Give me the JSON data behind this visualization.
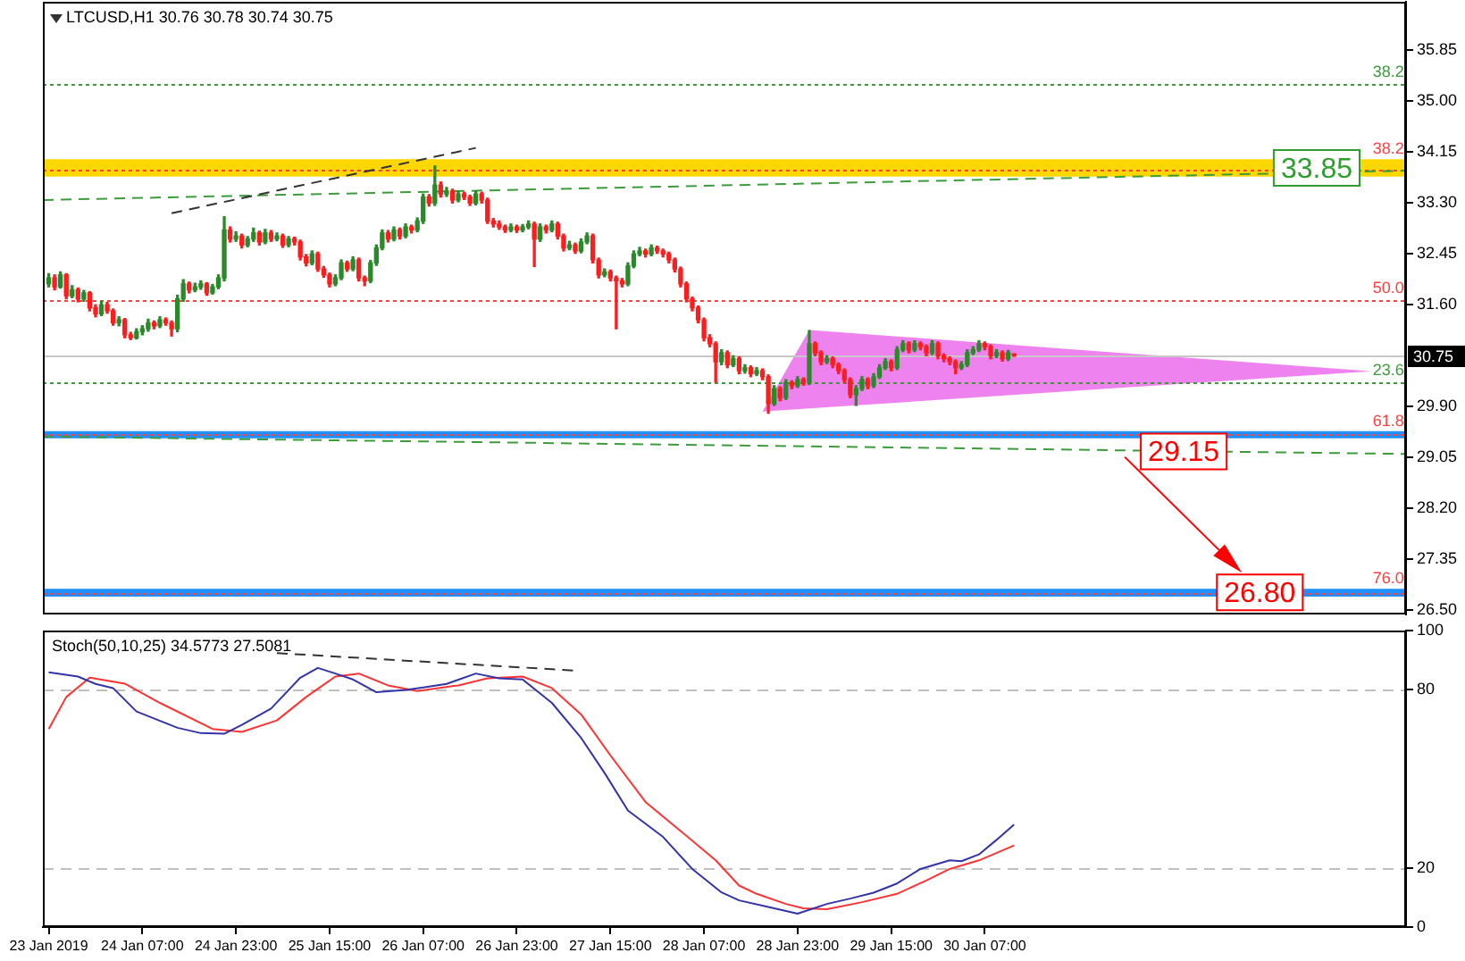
{
  "chart_data": [
    {
      "type": "candlestick",
      "title": "LTCUSD,H1 30.76 30.78 30.74 30.75",
      "tick_labels": "y",
      "xlim": [
        "2019-01-23T14:00",
        "2019-02-02T07:00"
      ],
      "ylim": [
        26.43,
        36.66
      ],
      "yticks": [
        {
          "value": 26.5,
          "label": "26.50"
        },
        27.35,
        {
          "value": 28.2,
          "label": "28.20"
        },
        29.05,
        {
          "value": 29.9,
          "label": "29.90"
        },
        {
          "value": 31.6,
          "label": "31.60"
        },
        32.45,
        {
          "value": 33.3,
          "label": "33.30"
        },
        34.15,
        {
          "value": 35.0,
          "label": "35.00"
        },
        35.85
      ],
      "x": [
        "2019-01-23T15:00",
        "2019-01-23T16:00",
        "2019-01-23T17:00",
        "2019-01-23T18:00",
        "2019-01-23T19:00",
        "2019-01-23T20:00",
        "2019-01-23T21:00",
        "2019-01-23T22:00",
        "2019-01-23T23:00",
        "2019-01-24T00:00",
        "2019-01-24T01:00",
        "2019-01-24T02:00",
        "2019-01-24T03:00",
        "2019-01-24T04:00",
        "2019-01-24T05:00",
        "2019-01-24T06:00",
        "2019-01-24T07:00",
        "2019-01-24T08:00",
        "2019-01-24T09:00",
        "2019-01-24T10:00",
        "2019-01-24T11:00",
        "2019-01-24T12:00",
        "2019-01-24T13:00",
        "2019-01-24T14:00",
        "2019-01-24T15:00",
        "2019-01-24T16:00",
        "2019-01-24T17:00",
        "2019-01-24T18:00",
        "2019-01-24T19:00",
        "2019-01-24T20:00",
        "2019-01-24T21:00",
        "2019-01-24T22:00",
        "2019-01-24T23:00",
        "2019-01-25T00:00",
        "2019-01-25T01:00",
        "2019-01-25T02:00",
        "2019-01-25T03:00",
        "2019-01-25T04:00",
        "2019-01-25T05:00",
        "2019-01-25T06:00",
        "2019-01-25T07:00",
        "2019-01-25T08:00",
        "2019-01-25T09:00",
        "2019-01-25T10:00",
        "2019-01-25T11:00",
        "2019-01-25T12:00",
        "2019-01-25T13:00",
        "2019-01-25T14:00",
        "2019-01-25T15:00",
        "2019-01-25T16:00",
        "2019-01-25T17:00",
        "2019-01-25T18:00",
        "2019-01-25T19:00",
        "2019-01-25T20:00",
        "2019-01-25T21:00",
        "2019-01-25T22:00",
        "2019-01-25T23:00",
        "2019-01-26T00:00",
        "2019-01-26T01:00",
        "2019-01-26T02:00",
        "2019-01-26T03:00",
        "2019-01-26T04:00",
        "2019-01-26T05:00",
        "2019-01-26T06:00",
        "2019-01-26T07:00",
        "2019-01-26T08:00",
        "2019-01-26T09:00",
        "2019-01-26T10:00",
        "2019-01-26T11:00",
        "2019-01-26T12:00",
        "2019-01-26T13:00",
        "2019-01-26T14:00",
        "2019-01-26T15:00",
        "2019-01-26T16:00",
        "2019-01-26T17:00",
        "2019-01-26T18:00",
        "2019-01-26T19:00",
        "2019-01-26T20:00",
        "2019-01-26T21:00",
        "2019-01-26T22:00",
        "2019-01-26T23:00",
        "2019-01-27T00:00",
        "2019-01-27T01:00",
        "2019-01-27T02:00",
        "2019-01-27T03:00",
        "2019-01-27T04:00",
        "2019-01-27T05:00",
        "2019-01-27T06:00",
        "2019-01-27T07:00",
        "2019-01-27T08:00",
        "2019-01-27T09:00",
        "2019-01-27T10:00",
        "2019-01-27T11:00",
        "2019-01-27T12:00",
        "2019-01-27T13:00",
        "2019-01-27T14:00",
        "2019-01-27T15:00",
        "2019-01-27T16:00",
        "2019-01-27T17:00",
        "2019-01-27T18:00",
        "2019-01-27T19:00",
        "2019-01-27T20:00",
        "2019-01-27T21:00",
        "2019-01-27T22:00",
        "2019-01-27T23:00",
        "2019-01-28T00:00",
        "2019-01-28T01:00",
        "2019-01-28T02:00",
        "2019-01-28T03:00",
        "2019-01-28T04:00",
        "2019-01-28T05:00",
        "2019-01-28T06:00",
        "2019-01-28T07:00",
        "2019-01-28T08:00",
        "2019-01-28T09:00",
        "2019-01-28T10:00",
        "2019-01-28T11:00",
        "2019-01-28T12:00",
        "2019-01-28T13:00",
        "2019-01-28T14:00",
        "2019-01-28T15:00",
        "2019-01-28T16:00",
        "2019-01-28T17:00",
        "2019-01-28T18:00",
        "2019-01-28T19:00",
        "2019-01-28T20:00",
        "2019-01-28T21:00",
        "2019-01-28T22:00",
        "2019-01-28T23:00",
        "2019-01-29T00:00",
        "2019-01-29T01:00",
        "2019-01-29T02:00",
        "2019-01-29T03:00",
        "2019-01-29T04:00",
        "2019-01-29T05:00",
        "2019-01-29T06:00",
        "2019-01-29T07:00",
        "2019-01-29T08:00",
        "2019-01-29T09:00",
        "2019-01-29T10:00",
        "2019-01-29T11:00",
        "2019-01-29T12:00",
        "2019-01-29T13:00",
        "2019-01-29T14:00",
        "2019-01-29T15:00",
        "2019-01-29T16:00",
        "2019-01-29T17:00",
        "2019-01-29T18:00",
        "2019-01-29T19:00",
        "2019-01-29T20:00",
        "2019-01-29T21:00",
        "2019-01-29T22:00",
        "2019-01-29T23:00",
        "2019-01-30T00:00",
        "2019-01-30T01:00",
        "2019-01-30T02:00",
        "2019-01-30T03:00",
        "2019-01-30T04:00",
        "2019-01-30T05:00",
        "2019-01-30T06:00",
        "2019-01-30T07:00",
        "2019-01-30T08:00",
        "2019-01-30T09:00",
        "2019-01-30T10:00",
        "2019-01-30T11:00",
        "2019-01-30T12:00"
      ],
      "ohlc": [
        [
          31.95,
          32.12,
          31.9,
          32.05
        ],
        [
          32.05,
          32.1,
          31.85,
          31.9
        ],
        [
          31.9,
          32.15,
          31.88,
          32.1
        ],
        [
          32.1,
          32.12,
          31.7,
          31.75
        ],
        [
          31.75,
          31.92,
          31.72,
          31.85
        ],
        [
          31.85,
          31.88,
          31.65,
          31.7
        ],
        [
          31.7,
          31.84,
          31.66,
          31.8
        ],
        [
          31.8,
          31.82,
          31.5,
          31.55
        ],
        [
          31.55,
          31.6,
          31.4,
          31.45
        ],
        [
          31.45,
          31.66,
          31.42,
          31.6
        ],
        [
          31.6,
          31.64,
          31.46,
          31.5
        ],
        [
          31.5,
          31.53,
          31.26,
          31.3
        ],
        [
          31.3,
          31.4,
          31.25,
          31.35
        ],
        [
          31.35,
          31.37,
          31.05,
          31.1
        ],
        [
          31.1,
          31.14,
          31.02,
          31.05
        ],
        [
          31.05,
          31.2,
          31.03,
          31.15
        ],
        [
          31.15,
          31.25,
          31.1,
          31.2
        ],
        [
          31.2,
          31.36,
          31.16,
          31.3
        ],
        [
          31.3,
          31.33,
          31.2,
          31.25
        ],
        [
          31.25,
          31.4,
          31.22,
          31.35
        ],
        [
          31.35,
          31.38,
          31.26,
          31.3
        ],
        [
          31.3,
          31.33,
          31.08,
          31.2
        ],
        [
          31.2,
          31.76,
          31.15,
          31.7
        ],
        [
          31.7,
          32.02,
          31.66,
          31.95
        ],
        [
          31.95,
          31.98,
          31.8,
          31.85
        ],
        [
          31.85,
          31.96,
          31.82,
          31.9
        ],
        [
          31.9,
          32.0,
          31.86,
          31.95
        ],
        [
          31.95,
          31.97,
          31.76,
          31.8
        ],
        [
          31.8,
          31.94,
          31.78,
          31.9
        ],
        [
          31.9,
          32.1,
          31.87,
          32.05
        ],
        [
          32.05,
          33.07,
          32.0,
          32.85
        ],
        [
          32.85,
          32.9,
          32.65,
          32.7
        ],
        [
          32.7,
          32.82,
          32.66,
          32.75
        ],
        [
          32.75,
          32.78,
          32.55,
          32.6
        ],
        [
          32.6,
          32.74,
          32.57,
          32.7
        ],
        [
          32.7,
          32.88,
          32.66,
          32.8
        ],
        [
          32.8,
          32.83,
          32.6,
          32.65
        ],
        [
          32.65,
          32.86,
          32.62,
          32.8
        ],
        [
          32.8,
          32.84,
          32.66,
          32.7
        ],
        [
          32.7,
          32.8,
          32.67,
          32.75
        ],
        [
          32.75,
          32.78,
          32.56,
          32.6
        ],
        [
          32.6,
          32.74,
          32.57,
          32.7
        ],
        [
          32.7,
          32.73,
          32.6,
          32.65
        ],
        [
          32.65,
          32.68,
          32.35,
          32.4
        ],
        [
          32.4,
          32.44,
          32.25,
          32.3
        ],
        [
          32.3,
          32.5,
          32.27,
          32.45
        ],
        [
          32.45,
          32.48,
          32.16,
          32.2
        ],
        [
          32.2,
          32.24,
          32.06,
          32.1
        ],
        [
          32.1,
          32.13,
          31.9,
          31.95
        ],
        [
          31.95,
          32.1,
          31.92,
          32.05
        ],
        [
          32.05,
          32.35,
          32.02,
          32.3
        ],
        [
          32.3,
          32.33,
          32.16,
          32.2
        ],
        [
          32.2,
          32.4,
          32.17,
          32.35
        ],
        [
          32.35,
          32.38,
          32.0,
          32.05
        ],
        [
          32.05,
          32.08,
          31.92,
          32.0
        ],
        [
          32.0,
          32.34,
          31.97,
          32.3
        ],
        [
          32.3,
          32.6,
          32.26,
          32.55
        ],
        [
          32.55,
          32.85,
          32.52,
          32.8
        ],
        [
          32.8,
          32.84,
          32.65,
          32.7
        ],
        [
          32.7,
          32.9,
          32.67,
          32.85
        ],
        [
          32.85,
          32.88,
          32.7,
          32.75
        ],
        [
          32.75,
          32.95,
          32.72,
          32.9
        ],
        [
          32.9,
          32.93,
          32.8,
          32.85
        ],
        [
          32.85,
          33.05,
          32.82,
          33.0
        ],
        [
          33.0,
          33.45,
          32.96,
          33.4
        ],
        [
          33.4,
          33.44,
          33.25,
          33.3
        ],
        [
          33.3,
          33.92,
          33.26,
          33.6
        ],
        [
          33.6,
          33.65,
          33.4,
          33.45
        ],
        [
          33.45,
          33.56,
          33.41,
          33.5
        ],
        [
          33.5,
          33.53,
          33.3,
          33.35
        ],
        [
          33.35,
          33.5,
          33.32,
          33.45
        ],
        [
          33.45,
          33.48,
          33.36,
          33.4
        ],
        [
          33.4,
          33.43,
          33.26,
          33.3
        ],
        [
          33.3,
          33.5,
          33.27,
          33.45
        ],
        [
          33.45,
          33.48,
          33.3,
          33.35
        ],
        [
          33.35,
          33.38,
          32.96,
          33.0
        ],
        [
          33.0,
          33.04,
          32.9,
          32.95
        ],
        [
          32.95,
          33.0,
          32.86,
          32.9
        ],
        [
          32.9,
          32.93,
          32.81,
          32.85
        ],
        [
          32.85,
          32.95,
          32.82,
          32.9
        ],
        [
          32.9,
          32.93,
          32.81,
          32.85
        ],
        [
          32.85,
          32.94,
          32.82,
          32.9
        ],
        [
          32.9,
          33.0,
          32.87,
          32.95
        ],
        [
          32.95,
          32.98,
          32.24,
          32.7
        ],
        [
          32.7,
          32.95,
          32.66,
          32.9
        ],
        [
          32.9,
          32.93,
          32.8,
          32.85
        ],
        [
          32.85,
          33.0,
          32.82,
          32.95
        ],
        [
          32.95,
          32.98,
          32.7,
          32.75
        ],
        [
          32.75,
          32.78,
          32.5,
          32.55
        ],
        [
          32.55,
          32.66,
          32.52,
          32.6
        ],
        [
          32.6,
          32.63,
          32.46,
          32.5
        ],
        [
          32.5,
          32.7,
          32.47,
          32.65
        ],
        [
          32.65,
          32.8,
          32.62,
          32.75
        ],
        [
          32.75,
          32.78,
          32.3,
          32.35
        ],
        [
          32.35,
          32.38,
          32.05,
          32.1
        ],
        [
          32.1,
          32.2,
          32.07,
          32.15
        ],
        [
          32.15,
          32.18,
          32.0,
          32.05
        ],
        [
          32.05,
          32.08,
          31.2,
          32.0
        ],
        [
          32.0,
          32.04,
          31.9,
          31.95
        ],
        [
          31.95,
          32.3,
          31.92,
          32.25
        ],
        [
          32.25,
          32.5,
          32.22,
          32.45
        ],
        [
          32.45,
          32.56,
          32.42,
          32.5
        ],
        [
          32.5,
          32.53,
          32.4,
          32.45
        ],
        [
          32.45,
          32.6,
          32.42,
          32.55
        ],
        [
          32.55,
          32.58,
          32.46,
          32.5
        ],
        [
          32.5,
          32.53,
          32.4,
          32.45
        ],
        [
          32.45,
          32.48,
          32.3,
          32.35
        ],
        [
          32.35,
          32.38,
          32.15,
          32.2
        ],
        [
          32.2,
          32.23,
          31.9,
          31.95
        ],
        [
          31.95,
          31.98,
          31.65,
          31.7
        ],
        [
          31.7,
          31.73,
          31.5,
          31.55
        ],
        [
          31.55,
          31.58,
          31.3,
          31.35
        ],
        [
          31.35,
          31.38,
          31.0,
          31.05
        ],
        [
          31.05,
          31.1,
          30.9,
          30.95
        ],
        [
          30.95,
          30.98,
          30.31,
          30.65
        ],
        [
          30.65,
          30.85,
          30.6,
          30.8
        ],
        [
          30.8,
          30.83,
          30.55,
          30.6
        ],
        [
          30.6,
          30.75,
          30.57,
          30.7
        ],
        [
          30.7,
          30.73,
          30.45,
          30.5
        ],
        [
          30.5,
          30.6,
          30.46,
          30.55
        ],
        [
          30.55,
          30.58,
          30.4,
          30.45
        ],
        [
          30.45,
          30.55,
          30.42,
          30.5
        ],
        [
          30.5,
          30.53,
          30.35,
          30.4
        ],
        [
          30.4,
          30.43,
          29.79,
          29.95
        ],
        [
          29.95,
          30.25,
          29.92,
          30.2
        ],
        [
          30.2,
          30.23,
          30.0,
          30.05
        ],
        [
          30.05,
          30.35,
          30.02,
          30.3
        ],
        [
          30.3,
          30.33,
          30.2,
          30.25
        ],
        [
          30.25,
          30.4,
          30.22,
          30.35
        ],
        [
          30.35,
          30.38,
          30.26,
          30.3
        ],
        [
          30.3,
          31.17,
          30.27,
          30.95
        ],
        [
          30.95,
          30.98,
          30.75,
          30.8
        ],
        [
          30.8,
          30.83,
          30.6,
          30.65
        ],
        [
          30.65,
          30.75,
          30.62,
          30.7
        ],
        [
          30.7,
          30.73,
          30.55,
          30.6
        ],
        [
          30.6,
          30.63,
          30.45,
          30.5
        ],
        [
          30.5,
          30.53,
          30.3,
          30.35
        ],
        [
          30.35,
          30.38,
          30.05,
          30.1
        ],
        [
          30.1,
          30.25,
          29.92,
          30.2
        ],
        [
          30.2,
          30.4,
          30.17,
          30.35
        ],
        [
          30.35,
          30.38,
          30.2,
          30.25
        ],
        [
          30.25,
          30.45,
          30.22,
          30.4
        ],
        [
          30.4,
          30.6,
          30.37,
          30.55
        ],
        [
          30.55,
          30.7,
          30.52,
          30.65
        ],
        [
          30.65,
          30.68,
          30.5,
          30.55
        ],
        [
          30.55,
          30.9,
          30.52,
          30.85
        ],
        [
          30.85,
          31.0,
          30.82,
          30.95
        ],
        [
          30.95,
          30.98,
          30.8,
          30.85
        ],
        [
          30.85,
          31.0,
          30.82,
          30.95
        ],
        [
          30.95,
          30.98,
          30.85,
          30.9
        ],
        [
          30.9,
          30.93,
          30.75,
          30.8
        ],
        [
          30.8,
          31.0,
          30.77,
          30.95
        ],
        [
          30.95,
          30.98,
          30.7,
          30.75
        ],
        [
          30.75,
          30.78,
          30.65,
          30.7
        ],
        [
          30.7,
          30.73,
          30.6,
          30.65
        ],
        [
          30.65,
          30.68,
          30.45,
          30.55
        ],
        [
          30.55,
          30.65,
          30.52,
          30.6
        ],
        [
          30.6,
          30.85,
          30.57,
          30.8
        ],
        [
          30.8,
          30.9,
          30.77,
          30.85
        ],
        [
          30.85,
          31.0,
          30.82,
          30.95
        ],
        [
          30.95,
          30.98,
          30.85,
          30.9
        ],
        [
          30.9,
          30.93,
          30.7,
          30.75
        ],
        [
          30.75,
          30.85,
          30.72,
          30.8
        ],
        [
          30.8,
          30.83,
          30.66,
          30.7
        ],
        [
          30.7,
          30.84,
          30.67,
          30.8
        ],
        [
          30.76,
          30.78,
          30.74,
          30.75
        ]
      ],
      "colors": [
        "#2a8a2a",
        "#ff1c1c",
        "#2a8a2a",
        "#ff1c1c",
        "#2a8a2a",
        "#ff1c1c",
        "#2a8a2a",
        "#ff1c1c",
        "#ff1c1c",
        "#2a8a2a",
        "#ff1c1c",
        "#ff1c1c",
        "#2a8a2a",
        "#ff1c1c",
        "#ff1c1c",
        "#2a8a2a",
        "#2a8a2a",
        "#2a8a2a",
        "#ff1c1c",
        "#2a8a2a",
        "#ff1c1c",
        "#ff1c1c",
        "#2a8a2a",
        "#2a8a2a",
        "#ff1c1c",
        "#2a8a2a",
        "#2a8a2a",
        "#ff1c1c",
        "#2a8a2a",
        "#2a8a2a",
        "#2a8a2a",
        "#ff1c1c",
        "#2a8a2a",
        "#ff1c1c",
        "#2a8a2a",
        "#2a8a2a",
        "#ff1c1c",
        "#2a8a2a",
        "#ff1c1c",
        "#2a8a2a",
        "#ff1c1c",
        "#2a8a2a",
        "#ff1c1c",
        "#ff1c1c",
        "#ff1c1c",
        "#2a8a2a",
        "#ff1c1c",
        "#ff1c1c",
        "#ff1c1c",
        "#2a8a2a",
        "#2a8a2a",
        "#ff1c1c",
        "#2a8a2a",
        "#ff1c1c",
        "#ff1c1c",
        "#2a8a2a",
        "#2a8a2a",
        "#2a8a2a",
        "#ff1c1c",
        "#2a8a2a",
        "#ff1c1c",
        "#2a8a2a",
        "#ff1c1c",
        "#2a8a2a",
        "#2a8a2a",
        "#ff1c1c",
        "#2a8a2a",
        "#ff1c1c",
        "#2a8a2a",
        "#ff1c1c",
        "#2a8a2a",
        "#ff1c1c",
        "#ff1c1c",
        "#2a8a2a",
        "#ff1c1c",
        "#ff1c1c",
        "#ff1c1c",
        "#ff1c1c",
        "#ff1c1c",
        "#2a8a2a",
        "#ff1c1c",
        "#2a8a2a",
        "#2a8a2a",
        "#ff1c1c",
        "#2a8a2a",
        "#ff1c1c",
        "#2a8a2a",
        "#ff1c1c",
        "#ff1c1c",
        "#2a8a2a",
        "#ff1c1c",
        "#2a8a2a",
        "#2a8a2a",
        "#ff1c1c",
        "#ff1c1c",
        "#2a8a2a",
        "#ff1c1c",
        "#ff1c1c",
        "#ff1c1c",
        "#2a8a2a",
        "#2a8a2a",
        "#2a8a2a",
        "#ff1c1c",
        "#2a8a2a",
        "#ff1c1c",
        "#ff1c1c",
        "#ff1c1c",
        "#ff1c1c",
        "#ff1c1c",
        "#ff1c1c",
        "#ff1c1c",
        "#ff1c1c",
        "#ff1c1c",
        "#ff1c1c",
        "#ff1c1c",
        "#2a8a2a",
        "#ff1c1c",
        "#2a8a2a",
        "#ff1c1c",
        "#2a8a2a",
        "#ff1c1c",
        "#2a8a2a",
        "#ff1c1c",
        "#ff1c1c",
        "#2a8a2a",
        "#ff1c1c",
        "#2a8a2a",
        "#ff1c1c",
        "#2a8a2a",
        "#ff1c1c",
        "#2a8a2a",
        "#ff1c1c",
        "#ff1c1c",
        "#2a8a2a",
        "#ff1c1c",
        "#ff1c1c",
        "#ff1c1c",
        "#ff1c1c",
        "#2a8a2a",
        "#2a8a2a",
        "#ff1c1c",
        "#2a8a2a",
        "#2a8a2a",
        "#2a8a2a",
        "#ff1c1c",
        "#2a8a2a",
        "#2a8a2a",
        "#ff1c1c",
        "#2a8a2a",
        "#ff1c1c",
        "#ff1c1c",
        "#2a8a2a",
        "#ff1c1c",
        "#ff1c1c",
        "#ff1c1c",
        "#ff1c1c",
        "#2a8a2a",
        "#2a8a2a",
        "#2a8a2a",
        "#2a8a2a",
        "#ff1c1c",
        "#ff1c1c",
        "#2a8a2a",
        "#ff1c1c",
        "#2a8a2a",
        "#ff1c1c"
      ],
      "series": [
        {
          "type": "line",
          "color": "#ee82ee",
          "x": [
            "2019-01-28T17:00",
            "2019-01-29T01:00",
            "2019-02-02T01:00"
          ],
          "values": [
            null,
            null,
            null
          ],
          "lower": [
            29.82,
            29.87,
            30.49
          ],
          "upper": [
            29.82,
            31.18,
            30.49
          ]
        },
        {
          "type": "line",
          "color": "#333333",
          "line_style": "dashed",
          "x": [
            "2019-01-24T12:00",
            "2019-01-26T16:00"
          ],
          "values": [
            33.13,
            34.22
          ]
        },
        {
          "type": "line",
          "color": "#3c9c3c",
          "line_style": "dashed",
          "x": [
            "2019-01-23T14:00",
            "2019-02-02T07:00"
          ],
          "values": [
            33.35,
            33.84
          ]
        },
        {
          "type": "line",
          "color": "#3c9c3c",
          "line_style": "dashed",
          "x": [
            "2019-01-23T14:00",
            "2019-02-02T07:00"
          ],
          "values": [
            29.4,
            29.11
          ]
        }
      ],
      "ref_lines": [
        {
          "axis": "y",
          "value": 35.28,
          "color": "#3c9c3c",
          "line_style": "dotted"
        },
        {
          "axis": "y",
          "value": 33.87,
          "color": "#ff4040",
          "line_style": "dotted"
        },
        {
          "axis": "y",
          "value": 31.68,
          "color": "#ff4040",
          "line_style": "dotted"
        },
        {
          "axis": "y",
          "value": 30.75,
          "label": "30.75",
          "color": "#c8c8c8",
          "line_style": "solid"
        },
        {
          "axis": "y",
          "value": 30.31,
          "color": "#3c9c3c",
          "line_style": "dotted"
        },
        {
          "axis": "y",
          "value": 29.43,
          "color": "#ff4040",
          "line_style": "dotted"
        },
        {
          "axis": "y",
          "value": 26.8,
          "color": "#ff4040",
          "line_style": "dotted"
        }
      ],
      "bands": [
        {
          "axis": "y",
          "from": 33.74,
          "to": 34.03,
          "label": "33.85",
          "color": "#ffd700"
        },
        {
          "axis": "y",
          "from": 29.37,
          "to": 29.49,
          "color": "#1e90ff"
        },
        {
          "axis": "y",
          "from": 26.73,
          "to": 26.86,
          "color": "#1e90ff"
        }
      ],
      "annotations": [
        {
          "text": "38.2",
          "x": "2019-02-02T04:00",
          "y": 35.28
        },
        {
          "text": "38.2",
          "x": "2019-02-02T04:00",
          "y": 33.87
        },
        {
          "text": "50.0",
          "x": "2019-02-02T04:00",
          "y": 31.68
        },
        {
          "text": "23.6",
          "x": "2019-02-02T04:00",
          "y": 30.31
        },
        {
          "text": "61.8",
          "x": "2019-02-02T04:00",
          "y": 29.43
        },
        {
          "text": "76.0",
          "x": "2019-02-02T04:00",
          "y": 26.8
        },
        {
          "text": "29.15",
          "x": "2019-01-31T17:00",
          "y": 29.15
        },
        {
          "text": "26.80",
          "x": "2019-02-01T06:00",
          "y": 26.8
        }
      ]
    },
    {
      "type": "line",
      "title": "Stoch(50,10,25) 34.5773 27.5081",
      "xlim": [
        "2019-01-23T14:00",
        "2019-02-02T07:00"
      ],
      "xticks": [
        {
          "value": "2019-01-23T15:00",
          "label": "23 Jan 2019"
        },
        {
          "value": "2019-01-24T07:00",
          "label": "24 Jan 07:00"
        },
        {
          "value": "2019-01-24T23:00",
          "label": "24 Jan 23:00"
        },
        {
          "value": "2019-01-25T15:00",
          "label": "25 Jan 15:00"
        },
        {
          "value": "2019-01-26T07:00",
          "label": "26 Jan 07:00"
        },
        {
          "value": "2019-01-26T23:00",
          "label": "26 Jan 23:00"
        },
        {
          "value": "2019-01-27T15:00",
          "label": "27 Jan 15:00"
        },
        {
          "value": "2019-01-28T07:00",
          "label": "28 Jan 07:00"
        },
        {
          "value": "2019-01-28T23:00",
          "label": "28 Jan 23:00"
        },
        {
          "value": "2019-01-29T15:00",
          "label": "29 Jan 15:00"
        },
        {
          "value": "2019-01-30T07:00",
          "label": "30 Jan 07:00"
        }
      ],
      "ylim": [
        0,
        100
      ],
      "yticks": [
        0,
        20,
        80,
        100
      ],
      "ref_lines": [
        {
          "axis": "y",
          "value": 20,
          "color": "#c0c0c0",
          "line_style": "dashed"
        },
        {
          "axis": "y",
          "value": 80,
          "color": "#c0c0c0",
          "line_style": "dashed"
        }
      ],
      "series": [
        {
          "color": "#3333aa",
          "x": [
            "2019-01-23T15:00",
            "2019-01-23T20:00",
            "2019-01-23T23:00",
            "2019-01-24T02:00",
            "2019-01-24T06:00",
            "2019-01-24T13:00",
            "2019-01-24T17:00",
            "2019-01-24T21:00",
            "2019-01-25T00:00",
            "2019-01-25T05:00",
            "2019-01-25T10:00",
            "2019-01-25T13:00",
            "2019-01-25T16:00",
            "2019-01-25T19:00",
            "2019-01-25T23:00",
            "2019-01-26T04:00",
            "2019-01-26T07:00",
            "2019-01-26T11:00",
            "2019-01-26T16:00",
            "2019-01-26T20:00",
            "2019-01-27T00:00",
            "2019-01-27T05:00",
            "2019-01-27T10:00",
            "2019-01-27T14:00",
            "2019-01-27T18:00",
            "2019-01-28T00:00",
            "2019-01-28T05:00",
            "2019-01-28T10:00",
            "2019-01-28T13:00",
            "2019-01-28T18:00",
            "2019-01-28T23:00",
            "2019-01-29T04:00",
            "2019-01-29T08:00",
            "2019-01-29T12:00",
            "2019-01-29T16:00",
            "2019-01-29T20:00",
            "2019-01-30T01:00",
            "2019-01-30T03:00",
            "2019-01-30T06:00",
            "2019-01-30T09:00",
            "2019-01-30T12:00"
          ],
          "values": [
            85.9,
            84.5,
            82.0,
            80.6,
            72.7,
            67.2,
            65.4,
            65.2,
            68.2,
            73.7,
            84.1,
            87.4,
            85.5,
            83.5,
            79.2,
            80.0,
            80.8,
            82.0,
            85.5,
            83.9,
            83.5,
            75.6,
            63.8,
            52.0,
            39.3,
            30.4,
            19.6,
            11.7,
            9.0,
            6.8,
            4.5,
            7.8,
            9.6,
            11.6,
            14.7,
            19.6,
            22.5,
            22.2,
            24.5,
            29.4,
            34.6
          ]
        },
        {
          "color": "#ff3333",
          "x": [
            "2019-01-23T15:00",
            "2019-01-23T18:00",
            "2019-01-23T22:00",
            "2019-01-24T04:00",
            "2019-01-24T10:00",
            "2019-01-24T19:00",
            "2019-01-25T00:00",
            "2019-01-25T06:00",
            "2019-01-25T11:00",
            "2019-01-25T16:00",
            "2019-01-25T20:00",
            "2019-01-26T01:00",
            "2019-01-26T06:00",
            "2019-01-26T13:00",
            "2019-01-26T18:00",
            "2019-01-27T00:00",
            "2019-01-27T05:00",
            "2019-01-27T10:00",
            "2019-01-27T15:00",
            "2019-01-27T21:00",
            "2019-01-28T03:00",
            "2019-01-28T09:00",
            "2019-01-28T13:00",
            "2019-01-28T16:00",
            "2019-01-28T21:00",
            "2019-01-29T00:00",
            "2019-01-29T04:00",
            "2019-01-29T10:00",
            "2019-01-29T16:00",
            "2019-01-29T21:00",
            "2019-01-30T01:00",
            "2019-01-30T06:00",
            "2019-01-30T12:00"
          ],
          "values": [
            66.8,
            77.6,
            84.1,
            82.1,
            75.6,
            66.8,
            65.8,
            69.7,
            77.6,
            84.5,
            85.5,
            81.5,
            79.6,
            81.5,
            83.9,
            84.5,
            80.6,
            71.7,
            57.9,
            42.2,
            32.4,
            22.5,
            14.0,
            11.2,
            7.8,
            6.3,
            6.0,
            8.4,
            11.2,
            15.7,
            19.6,
            22.5,
            27.5
          ]
        },
        {
          "type": "line",
          "color": "#333333",
          "line_style": "dashed",
          "x": [
            "2019-01-25T06:00",
            "2019-01-27T09:00"
          ],
          "values": [
            92.4,
            86.5
          ]
        }
      ]
    }
  ]
}
